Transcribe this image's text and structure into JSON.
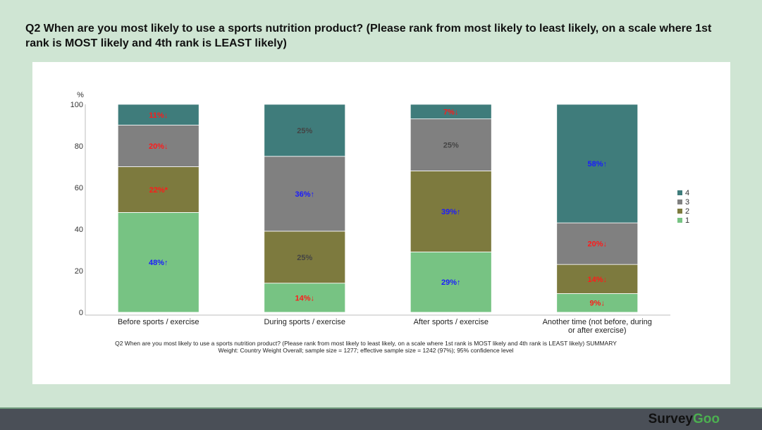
{
  "title": "Q2  When are you most likely to use a sports nutrition product? (Please rank from most likely to least likely, on a scale where 1st rank is MOST likely and 4th rank is LEAST likely)",
  "brand": {
    "logo_text": "Survey",
    "logo_accent": "Goo"
  },
  "colors": {
    "1": "#77c383",
    "2": "#7d7a3e",
    "3": "#808080",
    "4": "#3f7c7b",
    "up": "#1a1aff",
    "down": "#ff1a1a",
    "neutral": "#444444"
  },
  "chart_data": {
    "type": "bar",
    "stacked": true,
    "ylabel": "%",
    "ylim": [
      0,
      100
    ],
    "yticks": [
      "0",
      "20",
      "40",
      "60",
      "80",
      "100"
    ],
    "categories": [
      "Before sports / exercise",
      "During sports / exercise",
      "After sports / exercise",
      "Another time (not before, during or after exercise)"
    ],
    "series": [
      {
        "name": "1",
        "values": [
          48,
          14,
          29,
          9
        ],
        "labels": [
          "48%↑",
          "14%↓",
          "29%↑",
          "9%↓"
        ],
        "sig": [
          "up",
          "down",
          "up",
          "down"
        ]
      },
      {
        "name": "2",
        "values": [
          22,
          25,
          39,
          14
        ],
        "labels": [
          "22%*",
          "25%",
          "39%↑",
          "14%↓"
        ],
        "sig": [
          "down",
          "neutral",
          "up",
          "down"
        ]
      },
      {
        "name": "3",
        "values": [
          20,
          36,
          25,
          20
        ],
        "labels": [
          "20%↓",
          "36%↑",
          "25%",
          "20%↓"
        ],
        "sig": [
          "down",
          "up",
          "neutral",
          "down"
        ]
      },
      {
        "name": "4",
        "values": [
          11,
          25,
          7,
          58
        ],
        "labels": [
          "11%↓",
          "25%",
          "7%↓",
          "58%↑"
        ],
        "sig": [
          "down",
          "neutral",
          "down",
          "up"
        ]
      }
    ],
    "legend": {
      "placement": "right",
      "order": [
        "4",
        "3",
        "2",
        "1"
      ]
    },
    "notes": [
      "Q2  When are you most likely to use a sports nutrition product? (Please rank from most likely to least likely, on a scale where 1st rank is MOST likely and 4th rank is LEAST likely) SUMMARY",
      "Weight: Country Weight Overall; sample size = 1277; effective sample size = 1242 (97%); 95% confidence level"
    ]
  }
}
